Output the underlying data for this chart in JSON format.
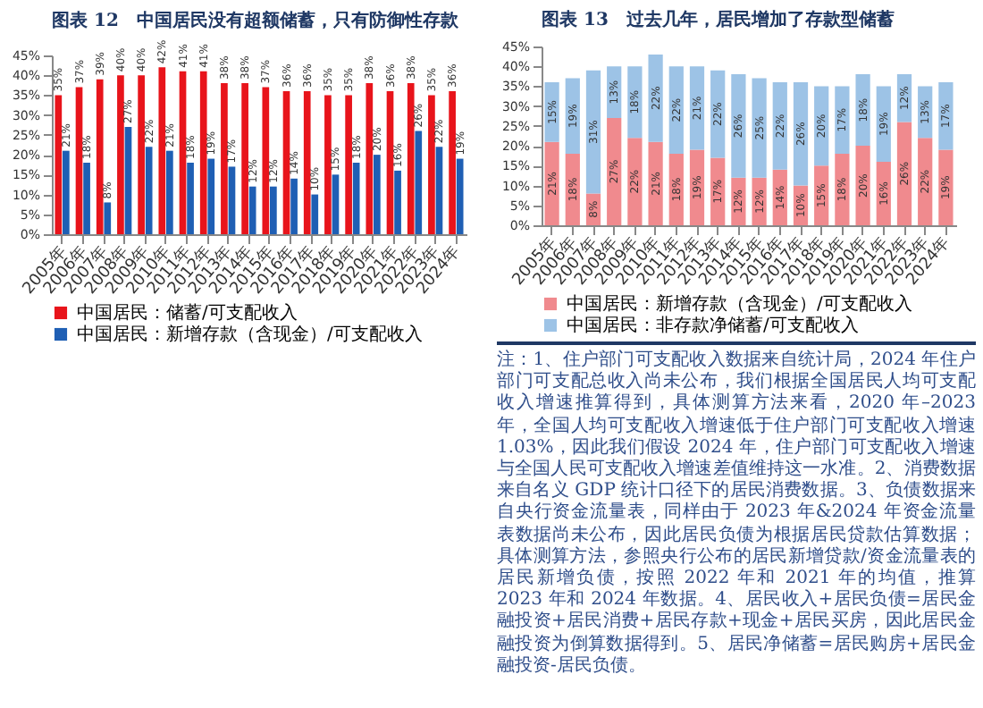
{
  "chart_data": [
    {
      "type": "bar",
      "title": "图表 12　中国居民没有超额储蓄，只有防御性存款",
      "categories": [
        "2005年",
        "2006年",
        "2007年",
        "2008年",
        "2009年",
        "2010年",
        "2011年",
        "2012年",
        "2013年",
        "2014年",
        "2015年",
        "2016年",
        "2017年",
        "2018年",
        "2019年",
        "2020年",
        "2021年",
        "2022年",
        "2023年",
        "2024年"
      ],
      "series": [
        {
          "name": "中国居民：储蓄/可支配收入",
          "color": "#e8141b",
          "values": [
            35,
            37,
            39,
            40,
            40,
            42,
            41,
            41,
            38,
            38,
            37,
            36,
            36,
            35,
            35,
            38,
            36,
            38,
            35,
            36
          ],
          "value_labels": [
            "35%",
            "37%",
            "39%",
            "40%",
            "40%",
            "42%",
            "41%",
            "41%",
            "38%",
            "38%",
            "37%",
            "36%",
            "36%",
            "35%",
            "35%",
            "38%",
            "36%",
            "38%",
            "35%",
            "36%"
          ]
        },
        {
          "name": "中国居民：新增存款（含现金）/可支配收入",
          "color": "#1f5fb4",
          "values": [
            21,
            18,
            8,
            27,
            22,
            21,
            18,
            19,
            17,
            12,
            12,
            14,
            10,
            15,
            18,
            20,
            16,
            26,
            22,
            19
          ],
          "value_labels": [
            "21%",
            "18%",
            "8%",
            "27%",
            "22%",
            "21%",
            "18%",
            "19%",
            "17%",
            "12%",
            "12%",
            "14%",
            "10%",
            "15%",
            "18%",
            "20%",
            "16%",
            "26%",
            "22%",
            "19%"
          ]
        }
      ],
      "ylim": [
        0,
        45
      ],
      "yticks": [
        {
          "value": 0,
          "label": "0%"
        },
        {
          "value": 5,
          "label": "5%"
        },
        {
          "value": 10,
          "label": "10%"
        },
        {
          "value": 15,
          "label": "15%"
        },
        {
          "value": 20,
          "label": "20%"
        },
        {
          "value": 25,
          "label": "25%"
        },
        {
          "value": 30,
          "label": "30%"
        },
        {
          "value": 35,
          "label": "35%"
        },
        {
          "value": 40,
          "label": "40%"
        },
        {
          "value": 45,
          "label": "45%"
        }
      ],
      "legend": "bottom"
    },
    {
      "type": "bar",
      "title": "图表 13　过去几年，居民增加了存款型储蓄",
      "stacked": true,
      "categories": [
        "2005年",
        "2006年",
        "2007年",
        "2008年",
        "2009年",
        "2010年",
        "2011年",
        "2012年",
        "2013年",
        "2014年",
        "2015年",
        "2016年",
        "2017年",
        "2018年",
        "2019年",
        "2020年",
        "2021年",
        "2022年",
        "2023年",
        "2024年"
      ],
      "series": [
        {
          "name": "中国居民：新增存款（含现金）/可支配收入",
          "color": "#f08a8e",
          "values": [
            21,
            18,
            8,
            27,
            22,
            21,
            18,
            19,
            17,
            12,
            12,
            14,
            10,
            15,
            18,
            20,
            16,
            26,
            22,
            19
          ],
          "value_labels": [
            "21%",
            "18%",
            "8%",
            "27%",
            "22%",
            "21%",
            "18%",
            "19%",
            "17%",
            "12%",
            "12%",
            "14%",
            "10%",
            "15%",
            "18%",
            "20%",
            "16%",
            "26%",
            "22%",
            "19%"
          ]
        },
        {
          "name": "中国居民：非存款净储蓄/可支配收入",
          "color": "#9dc3e6",
          "values": [
            15,
            19,
            31,
            13,
            18,
            22,
            22,
            21,
            22,
            26,
            25,
            22,
            26,
            20,
            17,
            18,
            19,
            12,
            13,
            17
          ],
          "value_labels": [
            "15%",
            "19%",
            "31%",
            "13%",
            "18%",
            "22%",
            "22%",
            "21%",
            "22%",
            "26%",
            "25%",
            "22%",
            "26%",
            "20%",
            "17%",
            "18%",
            "19%",
            "12%",
            "13%",
            "17%"
          ]
        }
      ],
      "ylim": [
        0,
        45
      ],
      "yticks": [
        {
          "value": 0,
          "label": "0%"
        },
        {
          "value": 5,
          "label": "5%"
        },
        {
          "value": 10,
          "label": "10%"
        },
        {
          "value": 15,
          "label": "15%"
        },
        {
          "value": 20,
          "label": "20%"
        },
        {
          "value": 25,
          "label": "25%"
        },
        {
          "value": 30,
          "label": "30%"
        },
        {
          "value": 35,
          "label": "35%"
        },
        {
          "value": 40,
          "label": "40%"
        },
        {
          "value": 45,
          "label": "45%"
        }
      ],
      "legend": "bottom",
      "annotations": [
        "注：1、住户部门可支配收入数据来自统计局，2024 年住户部门可支配总收入尚未公布，我们根据全国居民人均可支配收入增速推算得到，具体测算方法来看，2020 年–2023 年，全国人均可支配收入增速低于住户部门可支配收入增速 1.03%，因此我们假设 2024 年，住户部门可支配收入增速与全国人民可支配收入增速差值维持这一水准。2、消费数据来自名义 GDP 统计口径下的居民消费数据。3、负债数据来自央行资金流量表，同样由于 2023 年&2024 年资金流量表数据尚未公布，因此居民负债为根据居民贷款估算数据；具体测算方法，参照央行公布的居民新增贷款/资金流量表的居民新增负债，按照 2022 年和 2021 年的均值，推算 2023 年和 2024 年数据。4、居民收入+居民负债=居民金融投资+居民消费+居民存款+现金+居民买房，因此居民金融投资为倒算数据得到。5、居民净储蓄=居民购房+居民金融投资-居民负债。"
      ]
    }
  ]
}
